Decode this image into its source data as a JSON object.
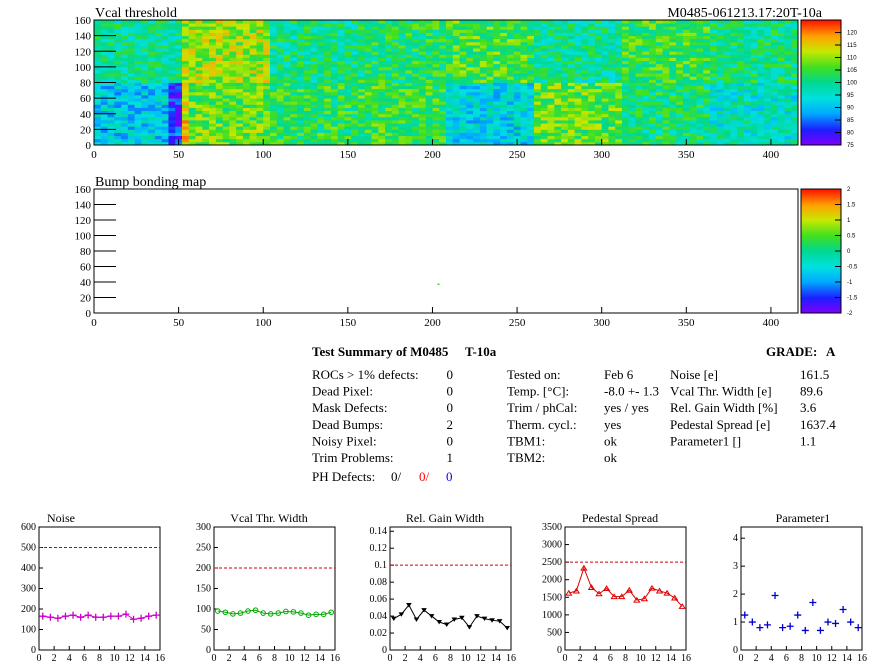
{
  "colors": {
    "noise": "#cc00cc",
    "vcal": "#00aa00",
    "relgain": "#000000",
    "pedestal": "#dd0000",
    "parameter1": "#0000cc",
    "reference_line": "#cc0000",
    "ph_defects_2": "#ff0000",
    "ph_defects_3": "#0000ff"
  },
  "icons": {
    "threshold_map": "heatmap",
    "bump_map": "heatmap"
  },
  "chart_data": [
    {
      "type": "heatmap",
      "title": "Vcal threshold",
      "id_label": "M0485-061213.17:20T-10a",
      "x_ticks": [
        "0",
        "50",
        "100",
        "150",
        "200",
        "250",
        "300",
        "350",
        "400"
      ],
      "y_ticks": [
        "0",
        "20",
        "40",
        "60",
        "80",
        "100",
        "120",
        "140",
        "160"
      ],
      "xlim": [
        0,
        416
      ],
      "ylim": [
        0,
        160
      ],
      "z_ticks": [
        "75",
        "80",
        "85",
        "90",
        "95",
        "100",
        "105",
        "110",
        "115",
        "120"
      ],
      "zlim": [
        75,
        125
      ],
      "roc_rows": [
        [
          99,
          110,
          100,
          102,
          105,
          99,
          104,
          100
        ],
        [
          92,
          107,
          103,
          104,
          93,
          107,
          101,
          96
        ]
      ]
    },
    {
      "type": "heatmap",
      "title": "Bump bonding map",
      "x_ticks": [
        "0",
        "50",
        "100",
        "150",
        "200",
        "250",
        "300",
        "350",
        "400"
      ],
      "y_ticks": [
        "0",
        "20",
        "40",
        "60",
        "80",
        "100",
        "120",
        "140",
        "160"
      ],
      "xlim": [
        0,
        416
      ],
      "ylim": [
        0,
        160
      ],
      "z_ticks": [
        "-2",
        "-1.5",
        "-1",
        "-0.5",
        "0",
        "0.5",
        "1",
        "1.5",
        "2"
      ],
      "zlim": [
        -2,
        2
      ],
      "points": [
        {
          "x": 203,
          "y": 38,
          "z": 0.3
        }
      ]
    },
    {
      "type": "line",
      "title": "Noise",
      "x_ticks": [
        "0",
        "2",
        "4",
        "6",
        "8",
        "10",
        "12",
        "14",
        "16"
      ],
      "y_ticks": [
        "0",
        "100",
        "200",
        "300",
        "400",
        "500",
        "600"
      ],
      "xlim": [
        0,
        16
      ],
      "ylim": [
        0,
        600
      ],
      "reference": 500,
      "x": [
        0.5,
        1.5,
        2.5,
        3.5,
        4.5,
        5.5,
        6.5,
        7.5,
        8.5,
        9.5,
        10.5,
        11.5,
        12.5,
        13.5,
        14.5,
        15.5
      ],
      "values": [
        165,
        160,
        155,
        165,
        170,
        160,
        170,
        160,
        160,
        165,
        165,
        175,
        150,
        155,
        165,
        170
      ],
      "marker": "cross"
    },
    {
      "type": "line",
      "title": "Vcal Thr. Width",
      "x_ticks": [
        "0",
        "2",
        "4",
        "6",
        "8",
        "10",
        "12",
        "14",
        "16"
      ],
      "y_ticks": [
        "0",
        "50",
        "100",
        "150",
        "200",
        "250",
        "300"
      ],
      "xlim": [
        0,
        16
      ],
      "ylim": [
        0,
        300
      ],
      "reference": 200,
      "x": [
        0.5,
        1.5,
        2.5,
        3.5,
        4.5,
        5.5,
        6.5,
        7.5,
        8.5,
        9.5,
        10.5,
        11.5,
        12.5,
        13.5,
        14.5,
        15.5
      ],
      "values": [
        95,
        92,
        88,
        90,
        95,
        97,
        90,
        88,
        90,
        94,
        93,
        90,
        85,
        87,
        87,
        92
      ],
      "marker": "circle"
    },
    {
      "type": "line",
      "title": "Rel. Gain Width",
      "x_ticks": [
        "0",
        "2",
        "4",
        "6",
        "8",
        "10",
        "12",
        "14",
        "16"
      ],
      "y_ticks": [
        "0",
        "0.02",
        "0.04",
        "0.06",
        "0.08",
        "0.1",
        "0.12",
        "0.14"
      ],
      "xlim": [
        0,
        16
      ],
      "ylim": [
        0,
        0.145
      ],
      "reference": 0.1,
      "x": [
        0.5,
        1.5,
        2.5,
        3.5,
        4.5,
        5.5,
        6.5,
        7.5,
        8.5,
        9.5,
        10.5,
        11.5,
        12.5,
        13.5,
        14.5,
        15.5
      ],
      "values": [
        0.037,
        0.042,
        0.053,
        0.036,
        0.047,
        0.04,
        0.033,
        0.03,
        0.036,
        0.038,
        0.027,
        0.04,
        0.037,
        0.035,
        0.034,
        0.026
      ],
      "marker": "triangle-down"
    },
    {
      "type": "line",
      "title": "Pedestal Spread",
      "x_ticks": [
        "0",
        "2",
        "4",
        "6",
        "8",
        "10",
        "12",
        "14",
        "16"
      ],
      "y_ticks": [
        "0",
        "500",
        "1000",
        "1500",
        "2000",
        "2500",
        "3000",
        "3500"
      ],
      "xlim": [
        0,
        16
      ],
      "ylim": [
        0,
        3500
      ],
      "reference": 2500,
      "x": [
        0.5,
        1.5,
        2.5,
        3.5,
        4.5,
        5.5,
        6.5,
        7.5,
        8.5,
        9.5,
        10.5,
        11.5,
        12.5,
        13.5,
        14.5,
        15.5
      ],
      "values": [
        1620,
        1680,
        2330,
        1780,
        1600,
        1750,
        1520,
        1520,
        1700,
        1420,
        1460,
        1760,
        1680,
        1620,
        1480,
        1240
      ],
      "marker": "triangle-up"
    },
    {
      "type": "scatter",
      "title": "Parameter1",
      "x_ticks": [
        "0",
        "2",
        "4",
        "6",
        "8",
        "10",
        "12",
        "14",
        "16"
      ],
      "y_ticks": [
        "0",
        "1",
        "2",
        "3",
        "4"
      ],
      "xlim": [
        0,
        16
      ],
      "ylim": [
        0,
        4.4
      ],
      "x": [
        0.5,
        1.5,
        2.5,
        3.5,
        4.5,
        5.5,
        6.5,
        7.5,
        8.5,
        9.5,
        10.5,
        11.5,
        12.5,
        13.5,
        14.5,
        15.5
      ],
      "values": [
        1.25,
        1.0,
        0.8,
        0.9,
        1.95,
        0.8,
        0.85,
        1.25,
        0.7,
        1.7,
        0.7,
        1.0,
        0.95,
        1.45,
        1.0,
        0.8
      ],
      "marker": "cross"
    }
  ],
  "summary": {
    "title": "Test Summary of M0485",
    "temp_label": "T-10a",
    "grade_label": "GRADE:",
    "grade_value": "A",
    "left": [
      {
        "label": "ROCs > 1% defects:",
        "value": "0"
      },
      {
        "label": "Dead Pixel:",
        "value": "0"
      },
      {
        "label": "Mask Defects:",
        "value": "0"
      },
      {
        "label": "Dead Bumps:",
        "value": "2"
      },
      {
        "label": "Noisy Pixel:",
        "value": "0"
      },
      {
        "label": "Trim Problems:",
        "value": "1"
      }
    ],
    "ph_defects": {
      "label": "PH Defects:",
      "v1": "0/",
      "v2": "0/",
      "v3": "0"
    },
    "middle": [
      {
        "label": "Tested on:",
        "value": "Feb 6"
      },
      {
        "label": "Temp. [°C]:",
        "value": "-8.0 +- 1.3"
      },
      {
        "label": "Trim / phCal:",
        "value": "yes / yes"
      },
      {
        "label": "Therm. cycl.:",
        "value": "yes"
      },
      {
        "label": "TBM1:",
        "value": "ok"
      },
      {
        "label": "TBM2:",
        "value": "ok"
      }
    ],
    "right": [
      {
        "label": "Noise [e]",
        "value": "161.5"
      },
      {
        "label": "Vcal Thr. Width [e]",
        "value": "89.6"
      },
      {
        "label": "Rel. Gain Width [%]",
        "value": "3.6"
      },
      {
        "label": "Pedestal Spread [e]",
        "value": "1637.4"
      },
      {
        "label": "Parameter1 []",
        "value": "1.1"
      }
    ]
  }
}
